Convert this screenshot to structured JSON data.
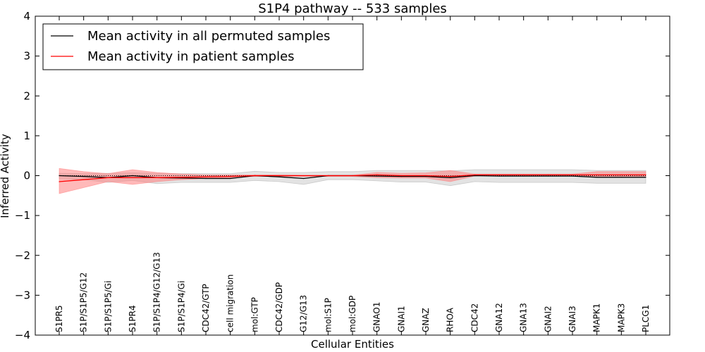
{
  "chart_data": {
    "type": "line",
    "title": "S1P4 pathway -- 533 samples",
    "xlabel": "Cellular Entities",
    "ylabel": "Inferred Activity",
    "ylim": [
      -4,
      4
    ],
    "yticks": [
      {
        "value": 4,
        "label": "4"
      },
      {
        "value": 3,
        "label": "3"
      },
      {
        "value": 2,
        "label": "2"
      },
      {
        "value": 1,
        "label": "1"
      },
      {
        "value": 0,
        "label": "0"
      },
      {
        "value": -1,
        "label": "−1"
      },
      {
        "value": -2,
        "label": "−2"
      },
      {
        "value": -3,
        "label": "−3"
      },
      {
        "value": -4,
        "label": "−4"
      }
    ],
    "categories": [
      "S1PR5",
      "S1P/S1P5/G12",
      "S1P/S1P5/Gi",
      "S1PR4",
      "S1P/S1P4/G12/G13",
      "S1P/S1P4/Gi",
      "CDC42/GTP",
      "cell migration",
      "mol:GTP",
      "CDC42/GDP",
      "G12/G13",
      "mol:S1P",
      "mol:GDP",
      "GNAO1",
      "GNAI1",
      "GNAZ",
      "RHOA",
      "CDC42",
      "GNA12",
      "GNA13",
      "GNAI2",
      "GNAI3",
      "MAPK1",
      "MAPK3",
      "PLCG1"
    ],
    "series": [
      {
        "name": "Mean activity in all permuted samples",
        "color": "#000000",
        "band_color": "#b0b0b0",
        "mean": [
          0.0,
          -0.02,
          -0.05,
          0.0,
          -0.05,
          -0.06,
          -0.07,
          -0.07,
          0.0,
          -0.03,
          -0.07,
          0.0,
          0.0,
          -0.01,
          -0.02,
          -0.02,
          -0.05,
          0.0,
          -0.01,
          -0.01,
          -0.01,
          -0.01,
          -0.04,
          -0.04,
          -0.04
        ],
        "upper": [
          0.06,
          0.05,
          0.06,
          0.07,
          0.06,
          0.05,
          0.05,
          0.05,
          0.11,
          0.08,
          0.08,
          0.1,
          0.1,
          0.13,
          0.13,
          0.13,
          0.12,
          0.15,
          0.15,
          0.15,
          0.15,
          0.15,
          0.13,
          0.13,
          0.13
        ],
        "lower": [
          -0.08,
          -0.1,
          -0.17,
          -0.12,
          -0.2,
          -0.17,
          -0.17,
          -0.17,
          -0.12,
          -0.15,
          -0.22,
          -0.1,
          -0.1,
          -0.13,
          -0.16,
          -0.16,
          -0.25,
          -0.15,
          -0.17,
          -0.17,
          -0.17,
          -0.17,
          -0.19,
          -0.19,
          -0.19
        ]
      },
      {
        "name": "Mean activity in patient samples",
        "color": "#ff0000",
        "band_color": "#ff8080",
        "mean": [
          -0.15,
          -0.1,
          -0.05,
          -0.05,
          -0.05,
          -0.04,
          -0.03,
          -0.02,
          0.0,
          0.0,
          0.0,
          0.0,
          0.0,
          0.02,
          0.0,
          0.0,
          -0.02,
          0.02,
          0.02,
          0.02,
          0.02,
          0.02,
          0.02,
          0.02,
          0.02
        ],
        "upper": [
          0.18,
          0.1,
          0.05,
          0.15,
          0.08,
          0.04,
          0.02,
          0.02,
          0.02,
          0.02,
          0.01,
          0.01,
          0.01,
          0.08,
          0.06,
          0.07,
          0.13,
          0.04,
          0.04,
          0.04,
          0.04,
          0.04,
          0.1,
          0.1,
          0.1
        ],
        "lower": [
          -0.45,
          -0.3,
          -0.15,
          -0.22,
          -0.15,
          -0.1,
          -0.07,
          -0.05,
          -0.02,
          -0.02,
          -0.02,
          -0.02,
          -0.02,
          -0.05,
          -0.06,
          -0.06,
          -0.15,
          -0.01,
          0.0,
          0.0,
          0.0,
          0.0,
          -0.02,
          -0.02,
          -0.02
        ]
      }
    ],
    "reference_line": {
      "style": "dotted",
      "value": 0
    },
    "legend": {
      "position": "top-left",
      "items": [
        {
          "label": "Mean activity in all permuted samples",
          "color": "#000000"
        },
        {
          "label": "Mean activity in patient samples",
          "color": "#ff0000"
        }
      ]
    }
  }
}
